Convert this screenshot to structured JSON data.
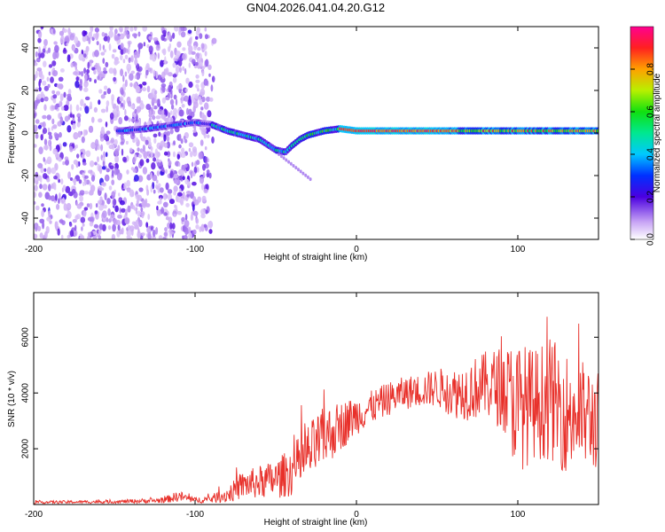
{
  "title": "GN04.2026.041.04.20.G12",
  "chart_data": [
    {
      "type": "heatmap",
      "xlabel": "Height of straight line (km)",
      "ylabel": "Frequency (Hz)",
      "xlim": [
        -200,
        150
      ],
      "ylim": [
        -50,
        50
      ],
      "x_ticks": [
        -200,
        -100,
        0,
        100
      ],
      "y_ticks": [
        -40,
        -20,
        0,
        20,
        40
      ],
      "colorbar": {
        "label": "Normalized spectral amplitude",
        "range": [
          0,
          1
        ],
        "ticks": [
          0.0,
          0.2,
          0.4,
          0.6,
          0.8
        ]
      },
      "ridge": {
        "x": [
          -145,
          -130,
          -120,
          -110,
          -100,
          -90,
          -80,
          -70,
          -60,
          -50,
          -44,
          -40,
          -35,
          -30,
          -20,
          -10,
          0,
          20,
          40,
          60,
          80,
          100,
          120,
          150
        ],
        "freq": [
          1,
          2,
          3,
          4,
          5,
          4,
          1,
          -1,
          -3,
          -8,
          -9,
          -6,
          -3,
          -1,
          1,
          2,
          1,
          1,
          1,
          1,
          1,
          1,
          1,
          1
        ]
      }
    },
    {
      "type": "line",
      "xlabel": "Height of straight line (km)",
      "ylabel": "SNR (10 * v/v)",
      "xlim": [
        -200,
        150
      ],
      "ylim": [
        0,
        7600
      ],
      "x_ticks": [
        -200,
        -100,
        0,
        100
      ],
      "y_ticks": [
        2000,
        4000,
        6000
      ],
      "color": "#e8302a",
      "envelope": {
        "x": [
          -200,
          -150,
          -120,
          -110,
          -100,
          -90,
          -80,
          -70,
          -60,
          -50,
          -40,
          -30,
          -20,
          -10,
          0,
          10,
          20,
          30,
          40,
          50,
          60,
          70,
          80,
          90,
          100,
          110,
          120,
          130,
          140,
          150
        ],
        "mean": [
          80,
          100,
          150,
          300,
          150,
          200,
          350,
          700,
          800,
          900,
          1200,
          1800,
          2400,
          2800,
          3200,
          3500,
          3800,
          4000,
          4100,
          4200,
          4000,
          4100,
          4300,
          4200,
          3500,
          3600,
          3800,
          3300,
          3200,
          3000
        ],
        "amp": [
          50,
          60,
          100,
          200,
          100,
          150,
          300,
          500,
          600,
          700,
          900,
          1100,
          1100,
          900,
          700,
          600,
          600,
          600,
          600,
          700,
          900,
          1100,
          1200,
          1500,
          2400,
          2000,
          2200,
          2200,
          2000,
          1800
        ]
      }
    }
  ]
}
